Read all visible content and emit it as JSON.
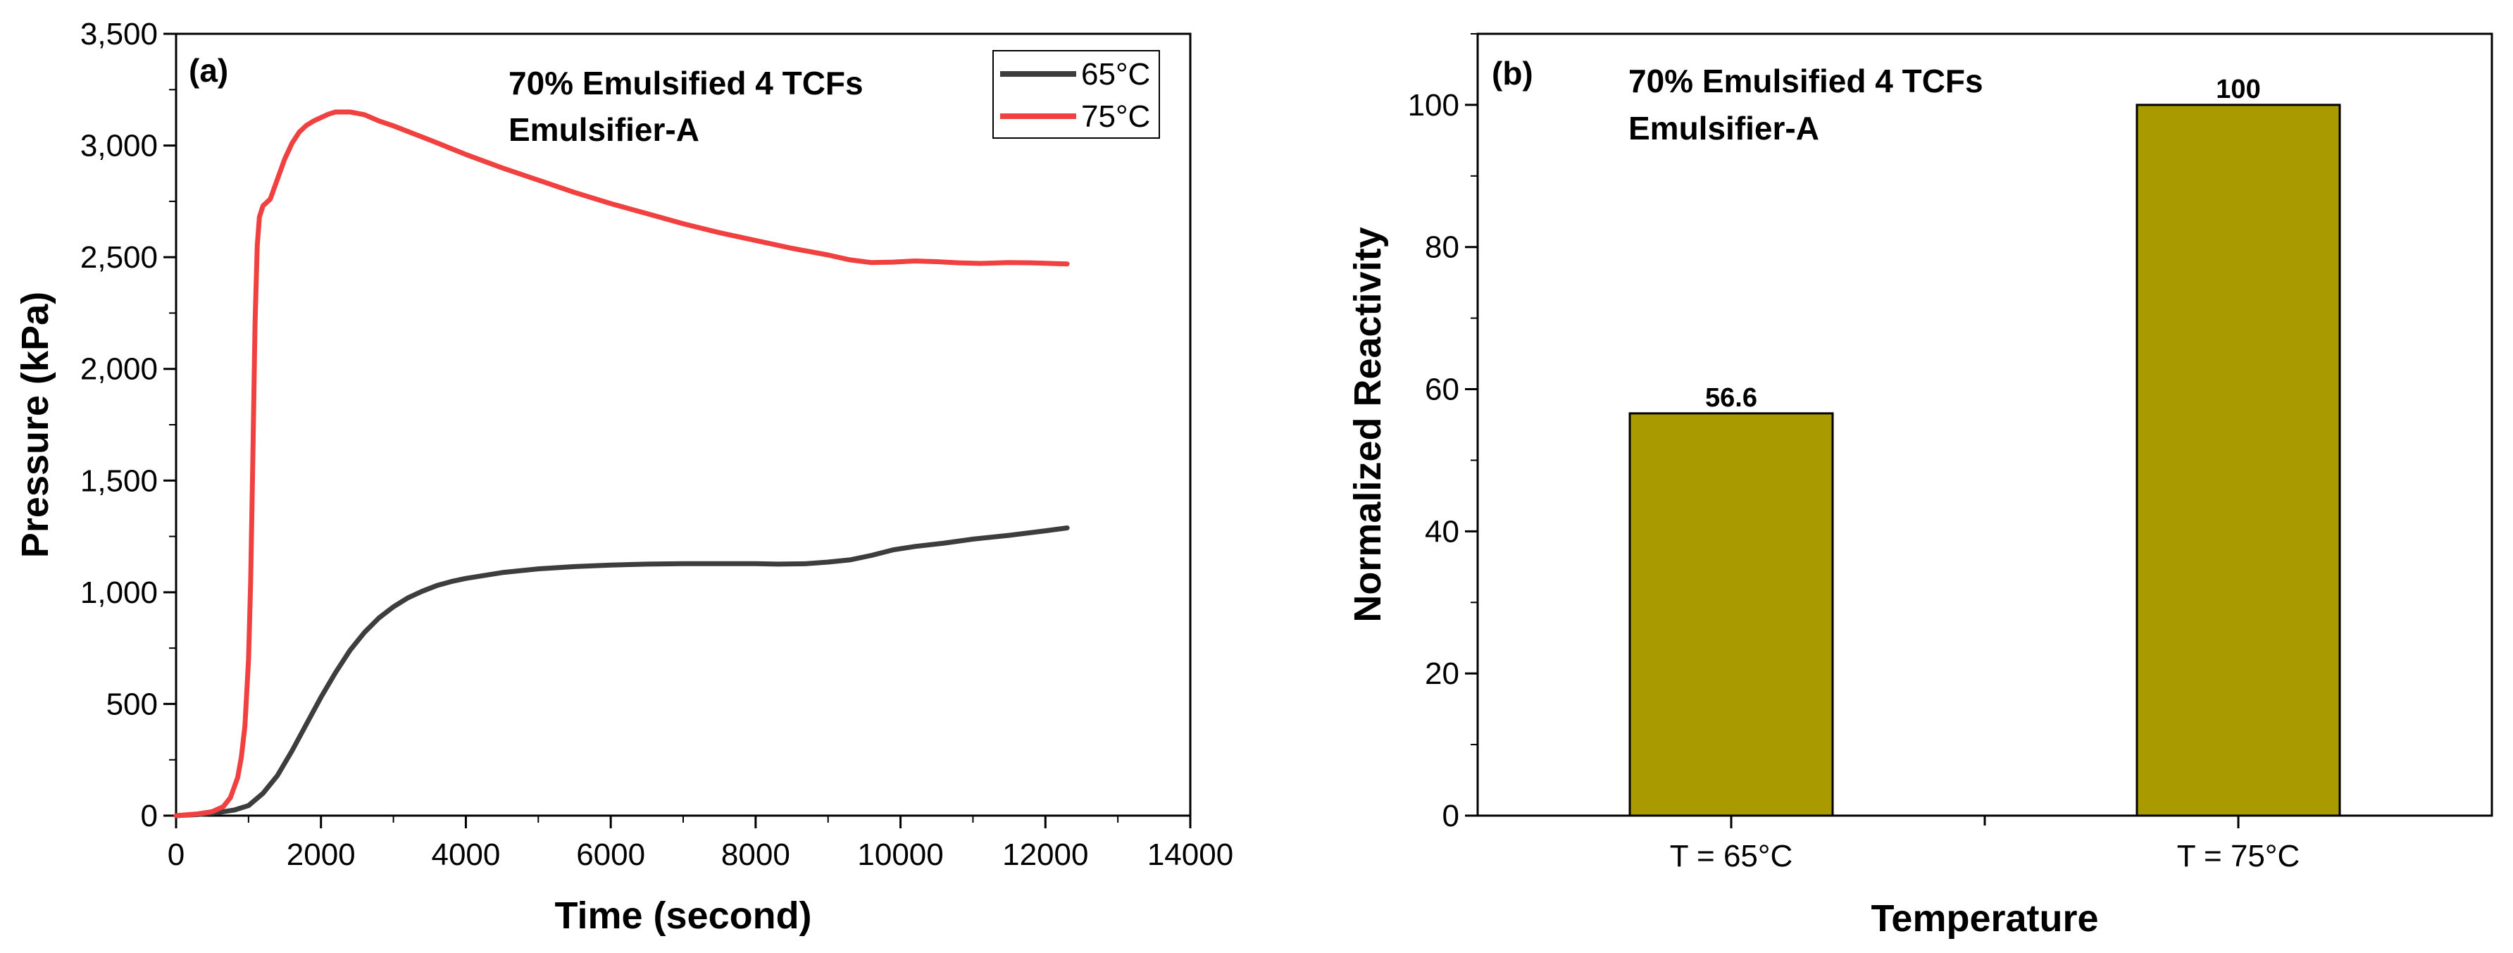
{
  "chart_data": [
    {
      "type": "line",
      "panel_label": "(a)",
      "xlabel": "Time (second)",
      "ylabel": "Pressure (kPa)",
      "xlim": [
        0,
        14000
      ],
      "ylim": [
        0,
        3500
      ],
      "xticks": [
        "0",
        "2000",
        "4000",
        "6000",
        "8000",
        "10000",
        "12000",
        "14000"
      ],
      "yticks": [
        "0",
        "500",
        "1,000",
        "1,500",
        "2,000",
        "2,500",
        "3,000",
        "3,500"
      ],
      "annotation": [
        "70% Emulsified 4 TCFs",
        "Emulsifier-A"
      ],
      "legend_position": "top-right",
      "series": [
        {
          "name": "65°C",
          "color": "#3d3d3d",
          "points": [
            [
              0,
              0
            ],
            [
              300,
              5
            ],
            [
              600,
              15
            ],
            [
              800,
              25
            ],
            [
              1000,
              45
            ],
            [
              1200,
              100
            ],
            [
              1400,
              180
            ],
            [
              1600,
              290
            ],
            [
              1800,
              410
            ],
            [
              2000,
              530
            ],
            [
              2200,
              640
            ],
            [
              2400,
              740
            ],
            [
              2600,
              820
            ],
            [
              2800,
              885
            ],
            [
              3000,
              935
            ],
            [
              3200,
              975
            ],
            [
              3400,
              1005
            ],
            [
              3600,
              1030
            ],
            [
              3800,
              1048
            ],
            [
              4000,
              1062
            ],
            [
              4500,
              1088
            ],
            [
              5000,
              1105
            ],
            [
              5500,
              1115
            ],
            [
              6000,
              1122
            ],
            [
              6500,
              1126
            ],
            [
              7000,
              1128
            ],
            [
              7500,
              1128
            ],
            [
              8000,
              1128
            ],
            [
              8300,
              1126
            ],
            [
              8700,
              1128
            ],
            [
              9000,
              1135
            ],
            [
              9300,
              1145
            ],
            [
              9600,
              1165
            ],
            [
              9900,
              1190
            ],
            [
              10200,
              1205
            ],
            [
              10600,
              1220
            ],
            [
              11000,
              1238
            ],
            [
              11500,
              1255
            ],
            [
              12000,
              1275
            ],
            [
              12300,
              1288
            ]
          ]
        },
        {
          "name": "75°C",
          "color": "#f04040",
          "points": [
            [
              0,
              0
            ],
            [
              300,
              8
            ],
            [
              500,
              18
            ],
            [
              650,
              40
            ],
            [
              750,
              80
            ],
            [
              850,
              170
            ],
            [
              900,
              260
            ],
            [
              950,
              400
            ],
            [
              1000,
              700
            ],
            [
              1030,
              1050
            ],
            [
              1060,
              1600
            ],
            [
              1090,
              2200
            ],
            [
              1120,
              2550
            ],
            [
              1150,
              2680
            ],
            [
              1200,
              2730
            ],
            [
              1300,
              2760
            ],
            [
              1400,
              2850
            ],
            [
              1500,
              2940
            ],
            [
              1600,
              3010
            ],
            [
              1700,
              3060
            ],
            [
              1800,
              3090
            ],
            [
              1900,
              3110
            ],
            [
              2000,
              3125
            ],
            [
              2100,
              3140
            ],
            [
              2200,
              3150
            ],
            [
              2400,
              3150
            ],
            [
              2600,
              3138
            ],
            [
              2800,
              3110
            ],
            [
              3000,
              3088
            ],
            [
              3500,
              3025
            ],
            [
              4000,
              2960
            ],
            [
              4500,
              2900
            ],
            [
              5000,
              2845
            ],
            [
              5500,
              2790
            ],
            [
              6000,
              2740
            ],
            [
              6500,
              2695
            ],
            [
              7000,
              2650
            ],
            [
              7500,
              2610
            ],
            [
              8000,
              2575
            ],
            [
              8500,
              2540
            ],
            [
              9000,
              2510
            ],
            [
              9300,
              2488
            ],
            [
              9600,
              2476
            ],
            [
              9900,
              2478
            ],
            [
              10200,
              2483
            ],
            [
              10500,
              2480
            ],
            [
              10800,
              2475
            ],
            [
              11100,
              2472
            ],
            [
              11500,
              2476
            ],
            [
              11800,
              2475
            ],
            [
              12300,
              2470
            ]
          ]
        }
      ]
    },
    {
      "type": "bar",
      "panel_label": "(b)",
      "xlabel": "Temperature",
      "ylabel": "Normalized Reactivity",
      "ylim": [
        0,
        110
      ],
      "yticks": [
        "0",
        "20",
        "40",
        "60",
        "80",
        "100"
      ],
      "annotation": [
        "70% Emulsified 4 TCFs",
        "Emulsifier-A"
      ],
      "categories": [
        "T = 65°C",
        "T = 75°C"
      ],
      "values": [
        56.6,
        100
      ],
      "value_labels": [
        "56.6",
        "100"
      ],
      "bar_color": "#a99a00"
    }
  ]
}
